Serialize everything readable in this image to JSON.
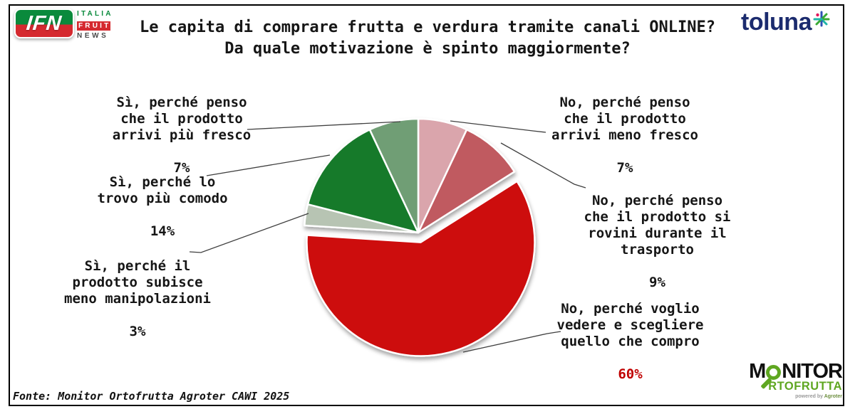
{
  "header": {
    "ifn": {
      "acronym": "IFN",
      "word1": "ITALIA",
      "word2": "FRUIT",
      "word3": "NEWS"
    },
    "title_line1": "Le capita di comprare frutta e verdura tramite canali ONLINE?",
    "title_line2": "Da quale motivazione è spinto maggiormente?",
    "toluna_text": "toluna"
  },
  "chart_data": {
    "type": "pie",
    "title": "Le capita di comprare frutta e verdura tramite canali ONLINE? Da quale motivazione è spinto maggiormente?",
    "start_angle_deg": 0,
    "direction": "clockwise",
    "units": "percent",
    "slices": [
      {
        "label": "No, perché penso che il prodotto arrivi meno fresco",
        "value": 7,
        "color": "#DAA5AC",
        "explode": 0
      },
      {
        "label": "No, perché penso che il prodotto si rovini durante il trasporto",
        "value": 9,
        "color": "#C05A60",
        "explode": 0
      },
      {
        "label": "No, perché voglio vedere e scegliere quello che compro",
        "value": 60,
        "color": "#CD0B10",
        "explode": 14
      },
      {
        "label": "Sì, perché il prodotto subisce meno manipolazioni",
        "value": 3,
        "color": "#B7C4B3",
        "explode": 0
      },
      {
        "label": "Sì, perché lo trovo più comodo",
        "value": 14,
        "color": "#187A2C",
        "explode": 0
      },
      {
        "label": "Sì, perché penso che il prodotto arrivi più fresco",
        "value": 7,
        "color": "#6F9E74",
        "explode": 0
      }
    ]
  },
  "callouts": [
    {
      "id": "si-piu-fresco",
      "lines": [
        "Sì, perché penso",
        "che il prodotto",
        "arrivi più fresco"
      ],
      "pct": "7%",
      "pct_color": "#161616"
    },
    {
      "id": "si-comodo",
      "lines": [
        "Sì, perché lo",
        "trovo più comodo"
      ],
      "pct": "14%",
      "pct_color": "#161616"
    },
    {
      "id": "si-manipolazioni",
      "lines": [
        "Sì, perché il",
        "prodotto subisce",
        "meno manipolazioni"
      ],
      "pct": "3%",
      "pct_color": "#161616"
    },
    {
      "id": "no-meno-fresco",
      "lines": [
        "No, perché penso",
        "che il prodotto",
        "arrivi meno fresco"
      ],
      "pct": "7%",
      "pct_color": "#161616"
    },
    {
      "id": "no-trasporto",
      "lines": [
        "No, perché penso",
        "che il prodotto si",
        "rovini durante il",
        "trasporto"
      ],
      "pct": "9%",
      "pct_color": "#161616"
    },
    {
      "id": "no-scegliere",
      "lines": [
        "No, perché voglio",
        "vedere e scegliere",
        "quello che compro"
      ],
      "pct": "60%",
      "pct_color": "#C00000"
    }
  ],
  "footer": {
    "source": "Fonte: Monitor Ortofrutta Agroter CAWI 2025"
  },
  "monitor_logo": {
    "m": "M",
    "nitor": "NITOR",
    "row2": "RTOFRUTTA",
    "powered": "powered by",
    "brand": "Agroter"
  },
  "colors": {
    "title_text": "#161616",
    "toluna_navy": "#1B2B6E",
    "ifn_green": "#0A8A3C",
    "ifn_red": "#D5292F",
    "monitor_green": "#5FA721",
    "pct_red": "#C00000",
    "callout_line": "#3F3F3F"
  }
}
